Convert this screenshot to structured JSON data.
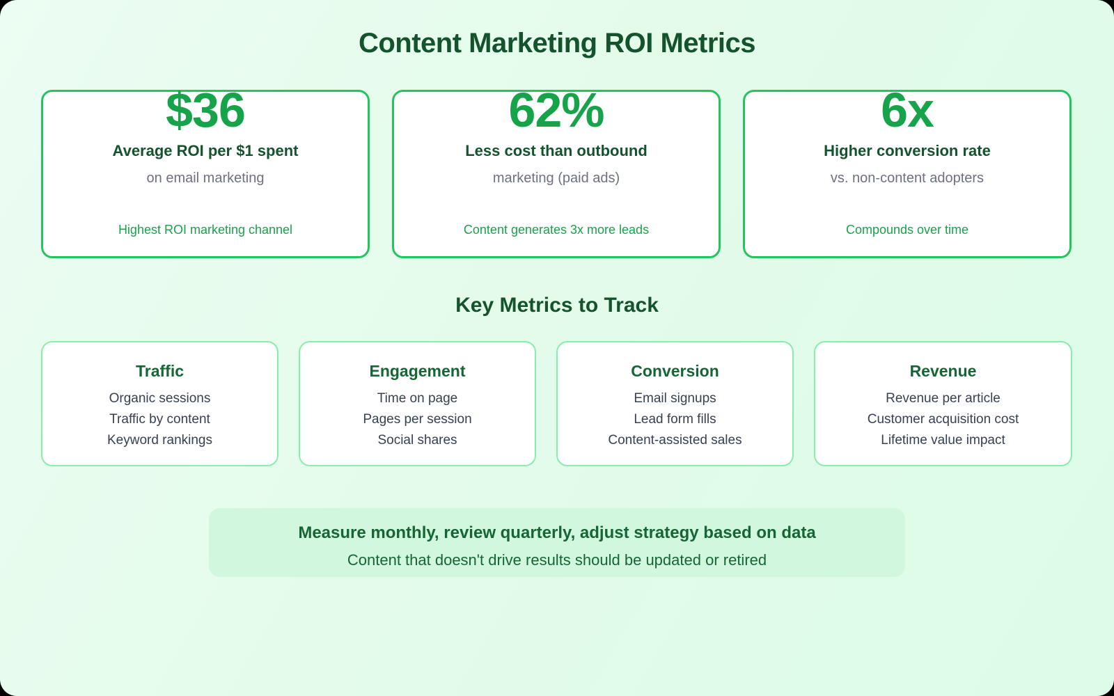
{
  "header": {
    "title": "Content Marketing ROI Metrics"
  },
  "stats": [
    {
      "value": "$36",
      "label": "Average ROI per $1 spent",
      "sub": "on email marketing",
      "note": "Highest ROI marketing channel"
    },
    {
      "value": "62%",
      "label": "Less cost than outbound",
      "sub": "marketing (paid ads)",
      "note": "Content generates 3x more leads"
    },
    {
      "value": "6x",
      "label": "Higher conversion rate",
      "sub": "vs. non-content adopters",
      "note": "Compounds over time"
    }
  ],
  "key_metrics": {
    "title": "Key Metrics to Track",
    "cards": [
      {
        "title": "Traffic",
        "items": [
          "Organic sessions",
          "Traffic by content",
          "Keyword rankings"
        ]
      },
      {
        "title": "Engagement",
        "items": [
          "Time on page",
          "Pages per session",
          "Social shares"
        ]
      },
      {
        "title": "Conversion",
        "items": [
          "Email signups",
          "Lead form fills",
          "Content-assisted sales"
        ]
      },
      {
        "title": "Revenue",
        "items": [
          "Revenue per article",
          "Customer acquisition cost",
          "Lifetime value impact"
        ]
      }
    ]
  },
  "callout": {
    "main": "Measure monthly, review quarterly, adjust strategy based on data",
    "sub": "Content that doesn't drive results should be updated or retired"
  },
  "colors": {
    "accent": "#16a34a",
    "stat_border": "#22c55e",
    "metric_border": "#86efac",
    "heading": "#14532d",
    "metric_heading": "#166534",
    "muted_text": "#6b7280",
    "body_text": "#374151",
    "callout_bg": "#d1f7df",
    "background_start": "#ecfdf3",
    "background_end": "#dcfce7"
  }
}
